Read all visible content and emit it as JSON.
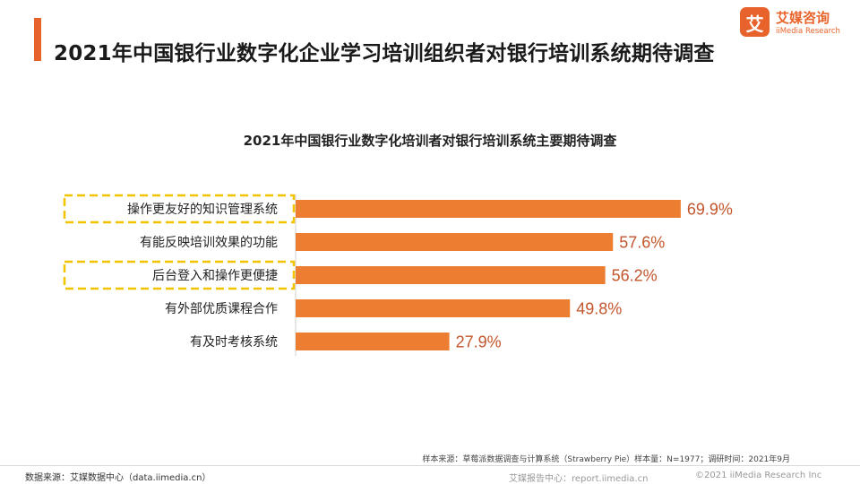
{
  "header": {
    "title": "2021年中国银行业数字化企业学习培训组织者对银行培训系统期待调查",
    "logo_mark": "艾",
    "logo_cn": "艾媒咨询",
    "logo_en": "iiMedia Research"
  },
  "chart_data": {
    "type": "bar",
    "orientation": "horizontal",
    "title": "2021年中国银行业数字化培训者对银行培训系统主要期待调查",
    "categories": [
      "操作更友好的知识管理系统",
      "有能反映培训效果的功能",
      "后台登入和操作更便捷",
      "有外部优质课程合作",
      "有及时考核系统"
    ],
    "values": [
      69.9,
      57.6,
      56.2,
      49.8,
      27.9
    ],
    "value_labels": [
      "69.9%",
      "57.6%",
      "56.2%",
      "49.8%",
      "27.9%"
    ],
    "highlighted": [
      true,
      false,
      true,
      false,
      false
    ],
    "xlim": [
      0,
      100
    ],
    "grid": false,
    "legend": "none",
    "bar_color": "#ed7d31",
    "value_label_color": "#c3552c",
    "highlight_border_color": "#f2c400"
  },
  "notes": {
    "sample": "样本来源：草莓派数据调查与计算系统（Strawberry Pie）样本量：N=1977；调研时间：2021年9月"
  },
  "footer": {
    "source": "数据来源：艾媒数据中心（data.iimedia.cn）",
    "report_center": "艾媒报告中心：report.iimedia.cn",
    "copyright": "©2021  iiMedia Research  Inc"
  }
}
